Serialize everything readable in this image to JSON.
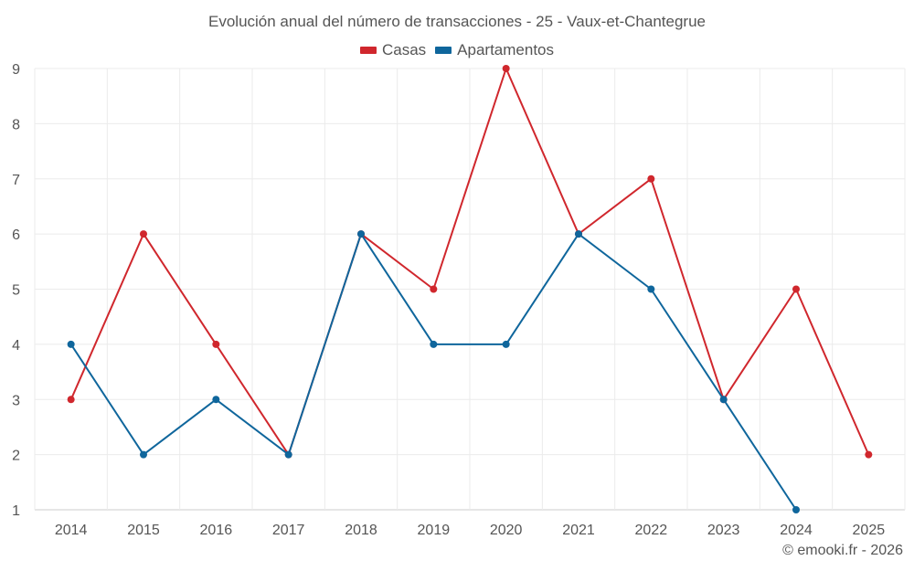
{
  "chart_data": {
    "type": "line",
    "title": "Evolución anual del número de transacciones - 25 - Vaux-et-Chantegrue",
    "categories": [
      "2014",
      "2015",
      "2016",
      "2017",
      "2018",
      "2019",
      "2020",
      "2021",
      "2022",
      "2023",
      "2024",
      "2025"
    ],
    "series": [
      {
        "name": "Casas",
        "color": "#d0272d",
        "values": [
          3,
          6,
          4,
          2,
          6,
          5,
          9,
          6,
          7,
          3,
          5,
          2
        ]
      },
      {
        "name": "Apartamentos",
        "color": "#0f669c",
        "values": [
          4,
          2,
          3,
          2,
          6,
          4,
          4,
          6,
          5,
          3,
          1,
          null
        ]
      }
    ],
    "yticks": [
      1,
      2,
      3,
      4,
      5,
      6,
      7,
      8,
      9
    ],
    "ylim": [
      1,
      9
    ],
    "xlabel": "",
    "ylabel": "",
    "grid": true,
    "legend_position": "top-center"
  },
  "credit": "© emooki.fr - 2026"
}
